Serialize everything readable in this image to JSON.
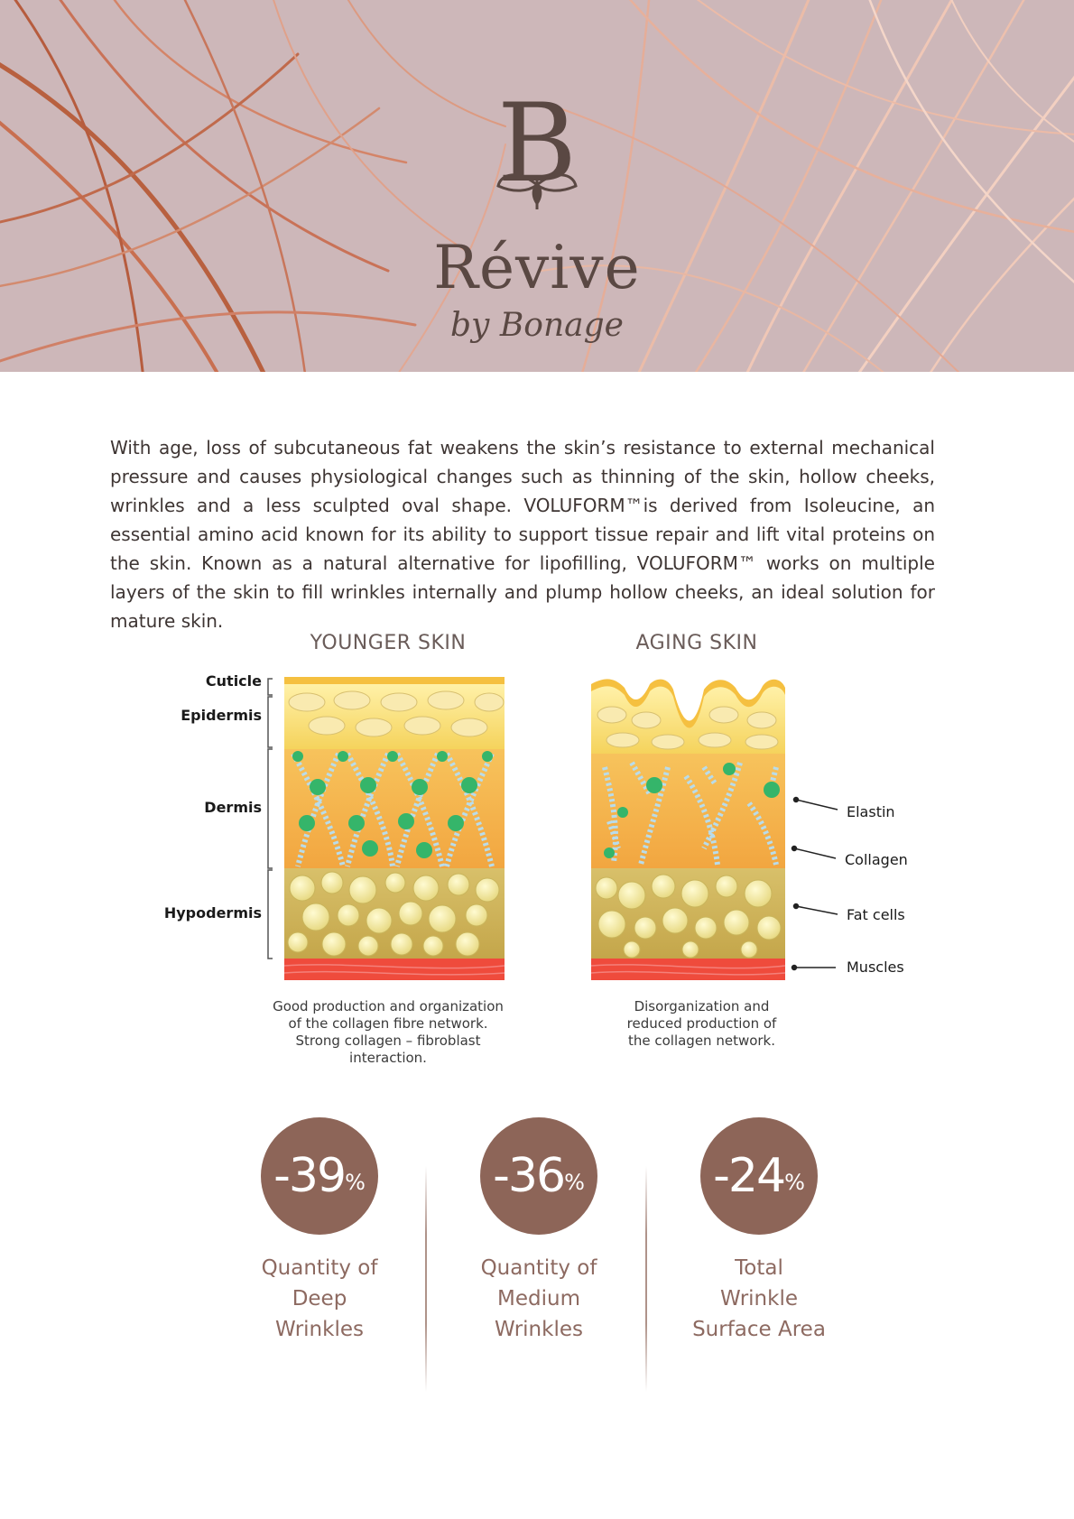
{
  "brand": {
    "name": "Révive",
    "tagline": "by Bonage",
    "monogram": "B",
    "logo_icon": "leaf-monogram-icon"
  },
  "intro_text": "With age, loss of subcutaneous fat weakens the skin’s resistance to external mechanical pressure and causes physiological changes such as thinning of the skin, hollow cheeks, wrinkles and a less sculpted oval shape. VOLUFORM™is derived from Isoleucine, an essential amino acid known for its ability to support tissue repair and lift vital proteins on the skin. Known as a natural alternative for lipofilling, VOLUFORM™ works on multiple layers of the skin to fill wrinkles internally and plump hollow cheeks, an ideal solution for mature skin.",
  "diagram": {
    "younger_title": "YOUNGER SKIN",
    "aging_title": "AGING SKIN",
    "layers": [
      "Cuticle",
      "Epidermis",
      "Dermis",
      "Hypodermis"
    ],
    "structures": [
      "Elastin",
      "Collagen",
      "Fat cells",
      "Muscles"
    ],
    "younger_caption": [
      "Good production and organization",
      "of the collagen fibre network.",
      "Strong collagen – fibroblast",
      "interaction."
    ],
    "aging_caption": [
      "Disorganization and",
      "reduced production of",
      "the collagen network."
    ]
  },
  "stats": [
    {
      "value": "-39",
      "unit": "%",
      "label": [
        "Quantity of",
        "Deep",
        "Wrinkles"
      ]
    },
    {
      "value": "-36",
      "unit": "%",
      "label": [
        "Quantity of",
        "Medium",
        "Wrinkles"
      ]
    },
    {
      "value": "-24",
      "unit": "%",
      "label": [
        "Total",
        "Wrinkle",
        "Surface Area"
      ]
    }
  ],
  "colors": {
    "banner": "#cdb7b9",
    "accent": "#8d6558",
    "brand_text": "#5a4843",
    "copper": "#c0705a"
  }
}
